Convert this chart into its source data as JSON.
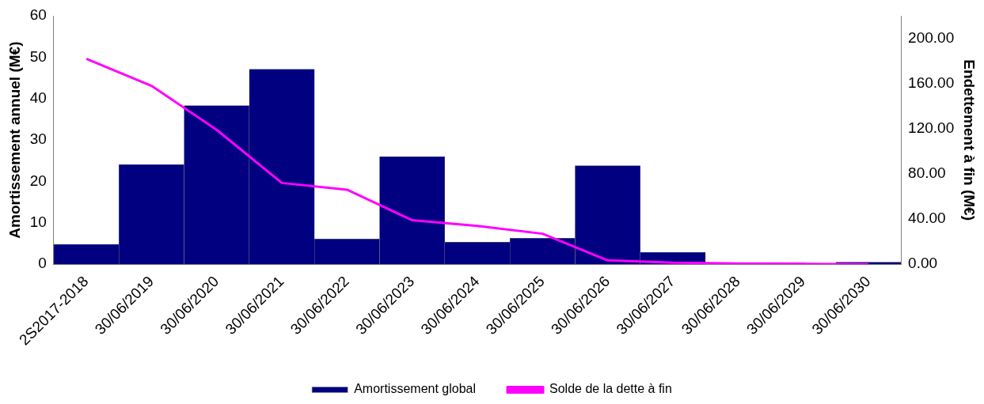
{
  "chart_data": {
    "type": "bar",
    "categories": [
      "2S2017-2018",
      "30/06/2019",
      "30/06/2020",
      "30/06/2021",
      "30/06/2022",
      "30/06/2023",
      "30/06/2024",
      "30/06/2025",
      "30/06/2026",
      "30/06/2027",
      "30/06/2028",
      "30/06/2029",
      "30/06/2030"
    ],
    "series": [
      {
        "name": "Amortissement global",
        "color": "#000080",
        "values": [
          4.8,
          24.1,
          38.3,
          47.1,
          6.1,
          26,
          5.3,
          6.3,
          23.8,
          2.9,
          0,
          0,
          0.5
        ]
      },
      {
        "name": "Solde de la dette à fin",
        "type": "line",
        "axis": "y2",
        "color": "#ff00ff",
        "values": [
          182,
          158,
          119,
          72,
          66,
          39,
          34,
          27,
          3.4,
          1.4,
          0.7,
          0.4,
          0
        ]
      }
    ],
    "ylabel": "Amortissement annuel (M€)",
    "y2label": "Endettement à fin (M€)",
    "ylim": [
      0,
      60
    ],
    "yticks": [
      0,
      10,
      20,
      30,
      40,
      50,
      60
    ],
    "y2lim": [
      0,
      220
    ],
    "y2ticks": [
      {
        "value": 0,
        "label": "0.00"
      },
      {
        "value": 40,
        "label": "40.00"
      },
      {
        "value": 80,
        "label": "80.00"
      },
      {
        "value": 120,
        "label": "120.00"
      },
      {
        "value": 160,
        "label": "160.00"
      },
      {
        "value": 200,
        "label": "200.00"
      }
    ],
    "grid": false,
    "legend": "bottom",
    "marker": "none",
    "line_style": "solid"
  }
}
